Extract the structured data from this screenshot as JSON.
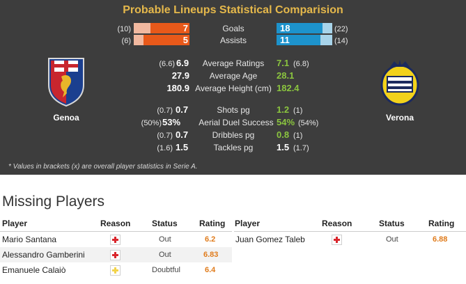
{
  "title": "Probable Lineups Statistical Comparision",
  "home": {
    "name": "Genoa"
  },
  "away": {
    "name": "Verona"
  },
  "bars": [
    {
      "label": "Goals",
      "home": "7",
      "home_overall": "(10)",
      "away": "18",
      "away_overall": "(22)",
      "home_fraction": 0.7,
      "away_fraction": 0.82
    },
    {
      "label": "Assists",
      "home": "5",
      "home_overall": "(6)",
      "away": "11",
      "away_overall": "(14)",
      "home_fraction": 0.83,
      "away_fraction": 0.79
    }
  ],
  "stats_group1": [
    {
      "label": "Average Ratings",
      "home_overall": "(6.6)",
      "home": "6.9",
      "away": "7.1",
      "away_overall": "(6.8)"
    },
    {
      "label": "Average Age",
      "home_overall": "",
      "home": "27.9",
      "away": "28.1",
      "away_overall": ""
    },
    {
      "label": "Average Height (cm)",
      "home_overall": "",
      "home": "180.9",
      "away": "182.4",
      "away_overall": ""
    }
  ],
  "stats_group2": [
    {
      "label": "Shots pg",
      "home_overall": "(0.7)",
      "home": "0.7",
      "away": "1.2",
      "away_overall": "(1)"
    },
    {
      "label": "Aerial Duel Success",
      "home_overall": "(50%)",
      "home": "53%",
      "away": "54%",
      "away_overall": "(54%)"
    },
    {
      "label": "Dribbles pg",
      "home_overall": "(0.7)",
      "home": "0.7",
      "away": "0.8",
      "away_overall": "(1)"
    },
    {
      "label": "Tackles pg",
      "home_overall": "(1.6)",
      "home": "1.5",
      "away": "1.5",
      "away_overall": "(1.7)"
    }
  ],
  "footnote": "* Values in brackets (x) are overall player statistics in Serie A.",
  "missing": {
    "heading": "Missing Players",
    "columns": {
      "player": "Player",
      "reason": "Reason",
      "status": "Status",
      "rating": "Rating"
    },
    "home_players": [
      {
        "name": "Mario Santana",
        "reason_icon": "injury-icon",
        "status": "Out",
        "rating": "6.2"
      },
      {
        "name": "Alessandro Gamberini",
        "reason_icon": "injury-icon",
        "status": "Out",
        "rating": "6.83"
      },
      {
        "name": "Emanuele Calaiò",
        "reason_icon": "doubtful-icon",
        "status": "Doubtful",
        "rating": "6.4"
      }
    ],
    "away_players": [
      {
        "name": "Juan Gomez Taleb",
        "reason_icon": "injury-icon",
        "status": "Out",
        "rating": "6.88"
      }
    ]
  },
  "colors": {
    "home_bar": "#e8591a",
    "away_bar": "#1d93cc",
    "title": "#e5b84b",
    "highlight": "#8bc53f",
    "injury": "#d9262c",
    "doubtful": "#f2d34b"
  }
}
